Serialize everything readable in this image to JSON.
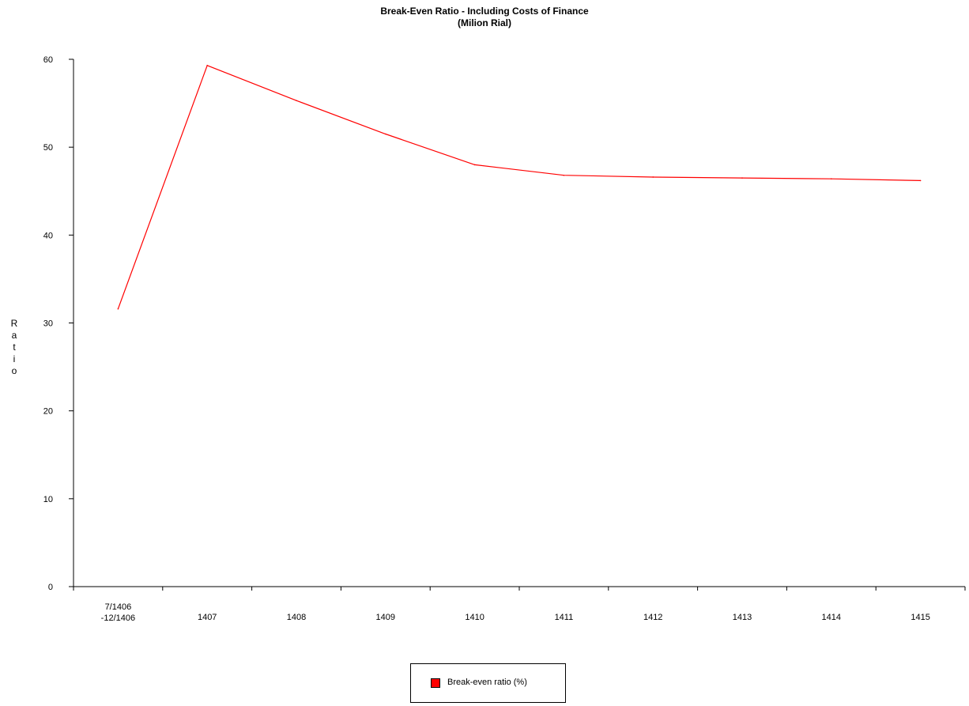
{
  "chart_data": {
    "type": "line",
    "title": "Break-Even Ratio - Including Costs of Finance",
    "subtitle": "(Milion Rial)",
    "xlabel": "",
    "ylabel": "Ratio",
    "ylim": [
      0,
      60
    ],
    "yticks": [
      "0",
      "10",
      "20",
      "30",
      "40",
      "50",
      "60"
    ],
    "categories": [
      "7/1406\n-12/1406",
      "1407",
      "1408",
      "1409",
      "1410",
      "1411",
      "1412",
      "1413",
      "1414",
      "1415"
    ],
    "series": [
      {
        "name": "Break-even ratio (%)",
        "color": "#ff0000",
        "values": [
          31.6,
          59.3,
          55.3,
          51.5,
          48.0,
          46.8,
          46.6,
          46.5,
          46.4,
          46.2
        ]
      }
    ],
    "grid": false,
    "legend_position": "bottom-center"
  }
}
